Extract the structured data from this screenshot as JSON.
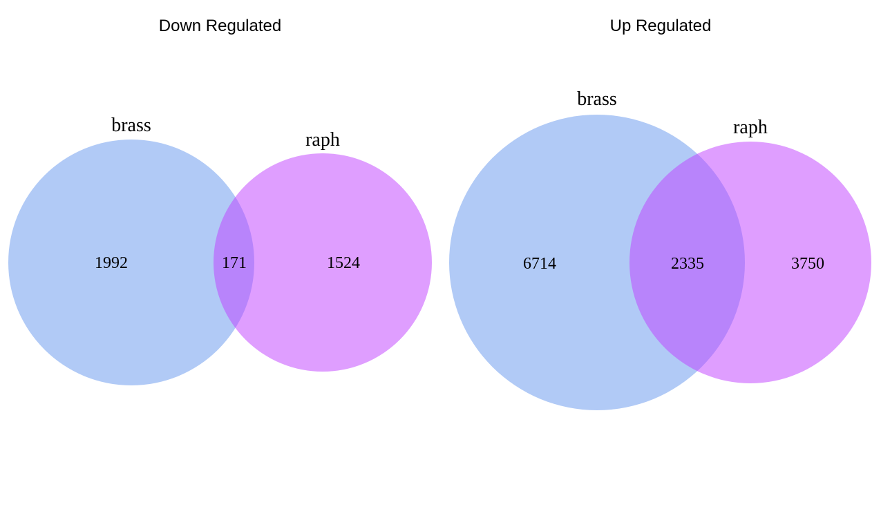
{
  "colors": {
    "set_a": "#6495ED",
    "set_b": "#BF3EFF",
    "fill_opacity": 0.5
  },
  "diagrams": [
    {
      "title": "Down Regulated",
      "set_a": {
        "name": "brass",
        "only": "1992"
      },
      "set_b": {
        "name": "raph",
        "only": "1524"
      },
      "overlap": "171"
    },
    {
      "title": "Up Regulated",
      "set_a": {
        "name": "brass",
        "only": "6714"
      },
      "set_b": {
        "name": "raph",
        "only": "3750"
      },
      "overlap": "2335"
    }
  ]
}
